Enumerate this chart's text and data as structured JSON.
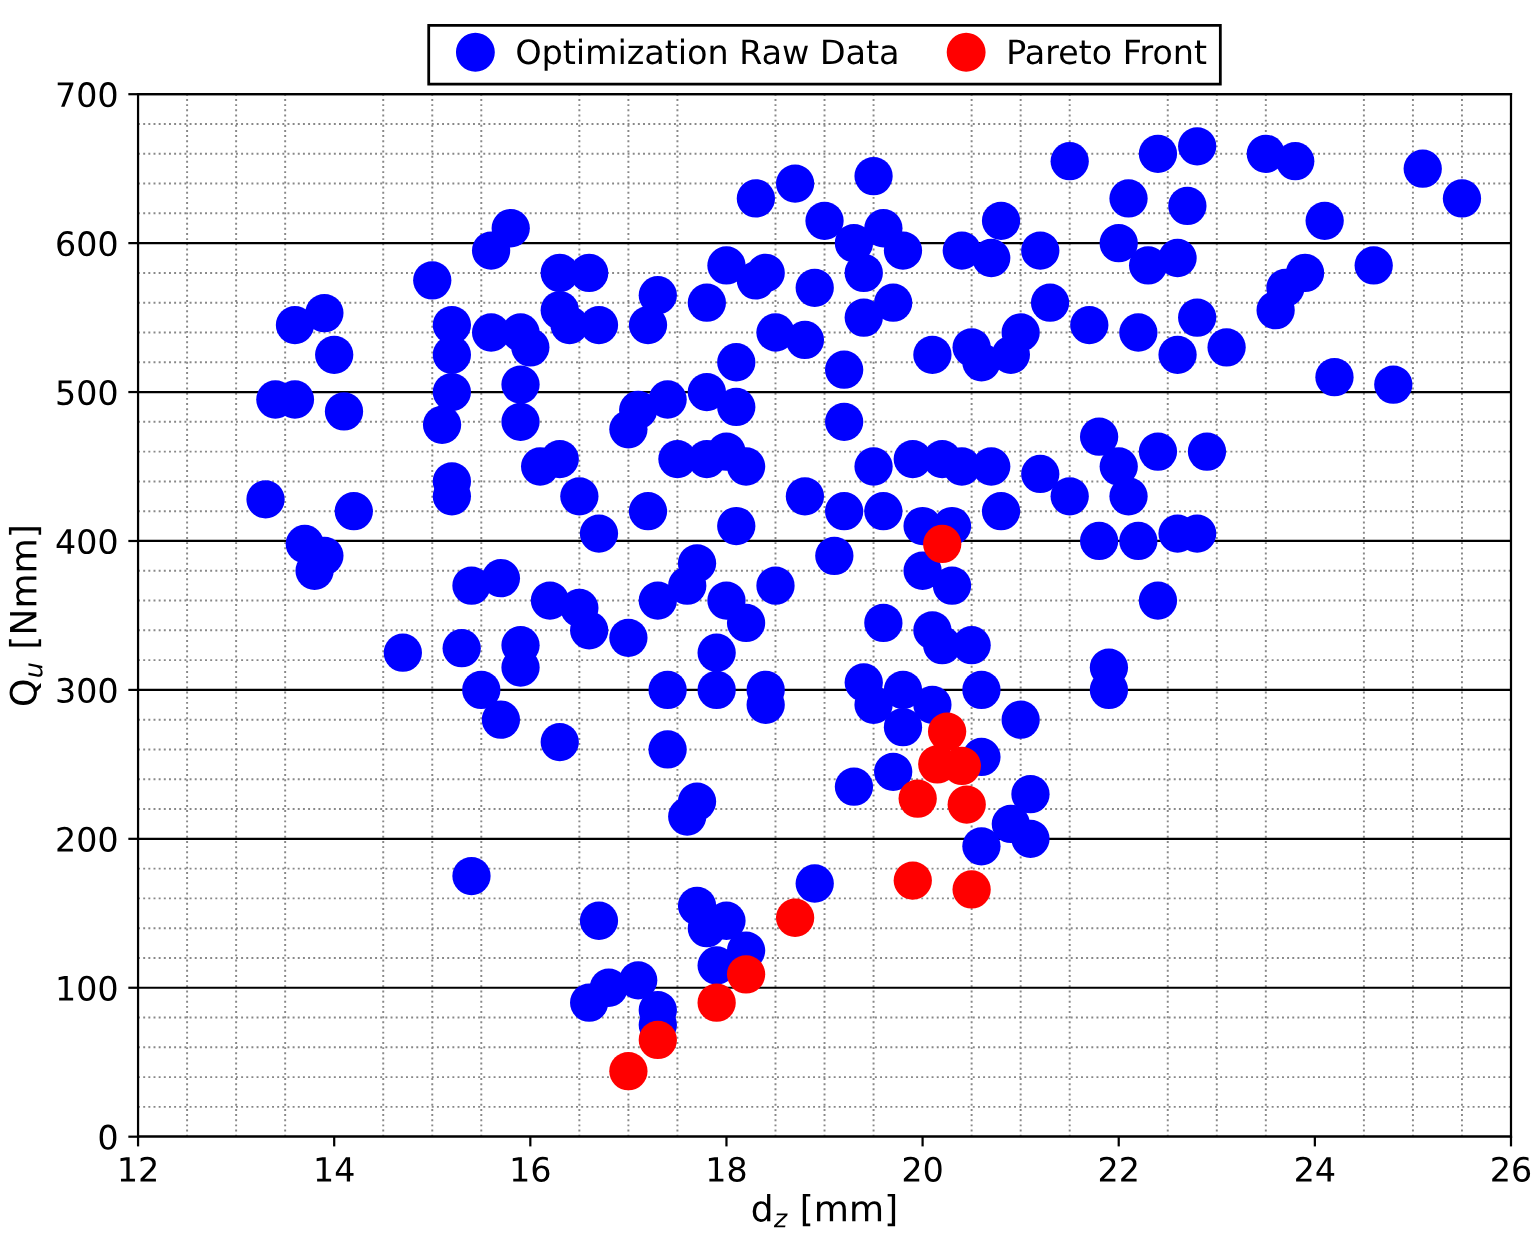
{
  "chart_data": {
    "type": "scatter",
    "xlabel": "d$_{z}$ [mm]",
    "ylabel": "Q$_{u}$ [Nmm]",
    "xlim": [
      12,
      26
    ],
    "ylim": [
      0,
      700
    ],
    "xticks": [
      12,
      14,
      16,
      18,
      20,
      22,
      24,
      26
    ],
    "yticks": [
      0,
      100,
      200,
      300,
      400,
      500,
      600,
      700
    ],
    "grid": "y",
    "legend": "top",
    "marker": "circle",
    "series": [
      {
        "name": "Optimization Raw Data",
        "color": "#0000ff",
        "x": [
          13.3,
          13.4,
          13.6,
          13.6,
          13.7,
          13.8,
          13.9,
          13.9,
          14.0,
          14.1,
          14.2,
          14.7,
          15.0,
          15.1,
          15.2,
          15.2,
          15.2,
          15.2,
          15.2,
          15.3,
          15.4,
          15.4,
          15.5,
          15.6,
          15.6,
          15.7,
          15.7,
          15.8,
          15.9,
          15.9,
          15.9,
          15.9,
          15.9,
          16.0,
          16.1,
          16.2,
          16.3,
          16.3,
          16.3,
          16.3,
          16.4,
          16.5,
          16.5,
          16.6,
          16.6,
          16.7,
          16.7,
          16.7,
          16.6,
          16.8,
          17.0,
          17.0,
          17.1,
          17.1,
          17.2,
          17.2,
          17.3,
          17.3,
          17.3,
          17.3,
          17.4,
          17.4,
          17.4,
          17.5,
          17.6,
          17.6,
          17.7,
          17.7,
          17.7,
          17.8,
          17.8,
          17.8,
          17.8,
          17.9,
          17.9,
          17.9,
          18.0,
          18.0,
          18.0,
          18.0,
          18.1,
          18.1,
          18.1,
          18.2,
          18.2,
          18.2,
          18.3,
          18.3,
          18.4,
          18.4,
          18.4,
          18.5,
          18.5,
          18.7,
          18.8,
          18.8,
          18.9,
          18.9,
          19.0,
          19.1,
          19.2,
          19.2,
          19.2,
          19.3,
          19.3,
          19.4,
          19.4,
          19.4,
          19.5,
          19.5,
          19.5,
          19.6,
          19.6,
          19.6,
          19.7,
          19.8,
          19.8,
          19.8,
          19.9,
          20.0,
          20.0,
          20.1,
          20.1,
          20.2,
          20.2,
          20.3,
          20.3,
          20.4,
          20.4,
          20.5,
          20.5,
          20.6,
          20.6,
          20.6,
          20.6,
          20.7,
          20.7,
          20.8,
          20.8,
          20.9,
          20.9,
          21.0,
          21.0,
          21.1,
          21.1,
          21.2,
          21.2,
          21.3,
          21.5,
          21.5,
          21.7,
          21.8,
          21.8,
          21.9,
          21.9,
          22.0,
          22.0,
          22.1,
          22.1,
          22.2,
          22.2,
          22.3,
          22.4,
          22.4,
          22.4,
          22.6,
          22.6,
          22.6,
          22.7,
          22.8,
          22.8,
          22.8,
          22.9,
          23.1,
          23.5,
          23.6,
          23.7,
          23.8,
          23.9,
          24.1,
          24.2,
          24.6,
          24.8,
          25.1,
          25.5,
          20.1,
          19.7
        ],
        "values": [
          428,
          495,
          495,
          545,
          398,
          380,
          390,
          553,
          525,
          487,
          420,
          325,
          575,
          478,
          545,
          525,
          500,
          440,
          430,
          328,
          175,
          370,
          300,
          540,
          595,
          375,
          280,
          610,
          540,
          505,
          480,
          330,
          315,
          530,
          450,
          360,
          455,
          265,
          580,
          555,
          545,
          430,
          355,
          340,
          580,
          545,
          405,
          145,
          90,
          100,
          335,
          475,
          105,
          488,
          420,
          545,
          565,
          85,
          75,
          360,
          495,
          300,
          260,
          455,
          215,
          370,
          225,
          155,
          385,
          455,
          500,
          560,
          140,
          325,
          300,
          115,
          585,
          360,
          460,
          145,
          490,
          520,
          410,
          450,
          345,
          125,
          630,
          575,
          300,
          290,
          580,
          370,
          540,
          640,
          535,
          430,
          170,
          570,
          615,
          390,
          515,
          480,
          420,
          600,
          235,
          550,
          305,
          580,
          450,
          645,
          290,
          420,
          610,
          345,
          560,
          300,
          275,
          595,
          455,
          410,
          380,
          525,
          340,
          455,
          330,
          410,
          370,
          450,
          595,
          530,
          330,
          520,
          300,
          255,
          195,
          590,
          450,
          615,
          420,
          525,
          210,
          280,
          540,
          230,
          200,
          595,
          445,
          560,
          655,
          430,
          545,
          470,
          400,
          315,
          300,
          600,
          450,
          630,
          430,
          540,
          400,
          585,
          660,
          460,
          360,
          590,
          525,
          405,
          625,
          665,
          405,
          550,
          460,
          530,
          660,
          555,
          570,
          655,
          580,
          615,
          510,
          585,
          505,
          650,
          630,
          290,
          245
        ]
      },
      {
        "name": "Pareto Front",
        "color": "#ff0000",
        "x": [
          17.0,
          17.3,
          17.9,
          18.2,
          18.7,
          19.9,
          19.95,
          20.2,
          20.25,
          20.15,
          20.4,
          20.45,
          20.5
        ],
        "values": [
          44,
          65,
          90,
          109,
          147,
          172,
          227,
          398,
          272,
          250,
          249,
          223,
          166
        ]
      }
    ]
  }
}
